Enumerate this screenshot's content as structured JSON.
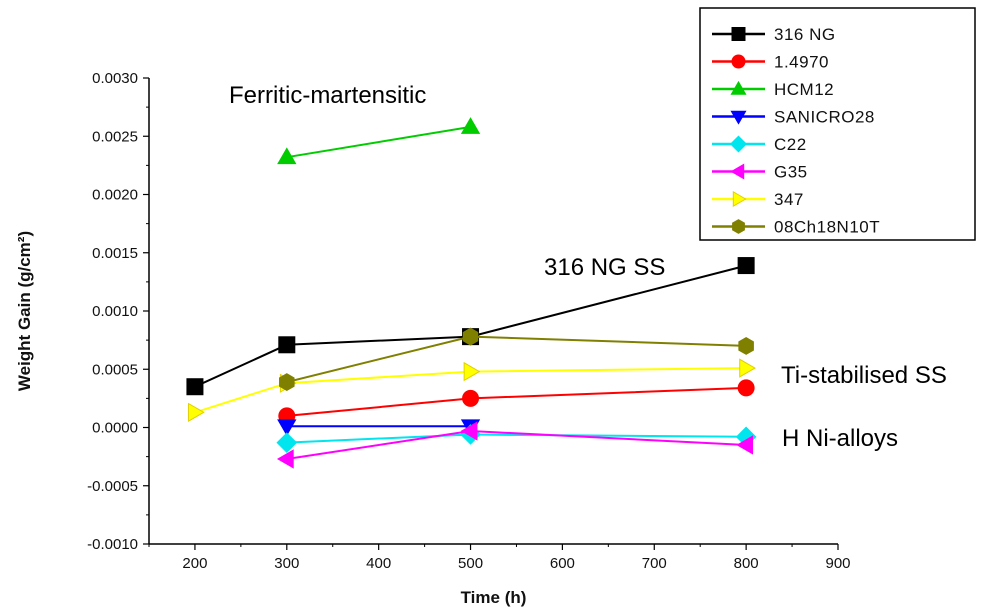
{
  "chart_data": {
    "type": "line",
    "xlabel": "Time (h)",
    "ylabel": "Weight Gain (g/cm²)",
    "xlim": [
      150,
      900
    ],
    "ylim": [
      -0.001,
      0.003
    ],
    "x_ticks": [
      200,
      300,
      400,
      500,
      600,
      700,
      800,
      900
    ],
    "y_ticks": [
      "-0.0010",
      "-0.0005",
      "0.0000",
      "0.0005",
      "0.0010",
      "0.0015",
      "0.0020",
      "0.0025",
      "0.0030"
    ],
    "grid": false,
    "legend_position": "top-right",
    "series": [
      {
        "name": "316 NG",
        "color": "#000000",
        "marker": "square",
        "x": [
          200,
          300,
          500,
          800
        ],
        "y": [
          0.00035,
          0.00071,
          0.00078,
          0.00139
        ]
      },
      {
        "name": "1.4970",
        "color": "#ff0000",
        "marker": "circle",
        "x": [
          300,
          500,
          800
        ],
        "y": [
          0.0001,
          0.00025,
          0.00034
        ]
      },
      {
        "name": "HCM12",
        "color": "#00cc00",
        "marker": "triangle-up",
        "x": [
          300,
          500
        ],
        "y": [
          0.00232,
          0.00258
        ]
      },
      {
        "name": "SANICRO28",
        "color": "#0000ff",
        "marker": "triangle-down",
        "x": [
          300,
          500
        ],
        "y": [
          1e-05,
          1e-05
        ]
      },
      {
        "name": "C22",
        "color": "#00e5ee",
        "marker": "diamond",
        "x": [
          300,
          500,
          800
        ],
        "y": [
          -0.00013,
          -6e-05,
          -8e-05
        ]
      },
      {
        "name": "G35",
        "color": "#ff00ff",
        "marker": "triangle-left",
        "x": [
          300,
          500,
          800
        ],
        "y": [
          -0.00027,
          -3e-05,
          -0.00015
        ]
      },
      {
        "name": "347",
        "color": "#ffff00",
        "marker": "triangle-right",
        "x": [
          200,
          300,
          500,
          800
        ],
        "y": [
          0.00013,
          0.00038,
          0.00048,
          0.00051
        ]
      },
      {
        "name": "08Ch18N10T",
        "color": "#808000",
        "marker": "hexagon",
        "x": [
          300,
          500,
          800
        ],
        "y": [
          0.00039,
          0.00078,
          0.0007
        ]
      }
    ],
    "annotations": [
      {
        "text": "Ferritic-martensitic"
      },
      {
        "text": "316 NG SS"
      },
      {
        "text": "Ti-stabilised SS"
      },
      {
        "text": "H Ni-alloys"
      }
    ]
  }
}
